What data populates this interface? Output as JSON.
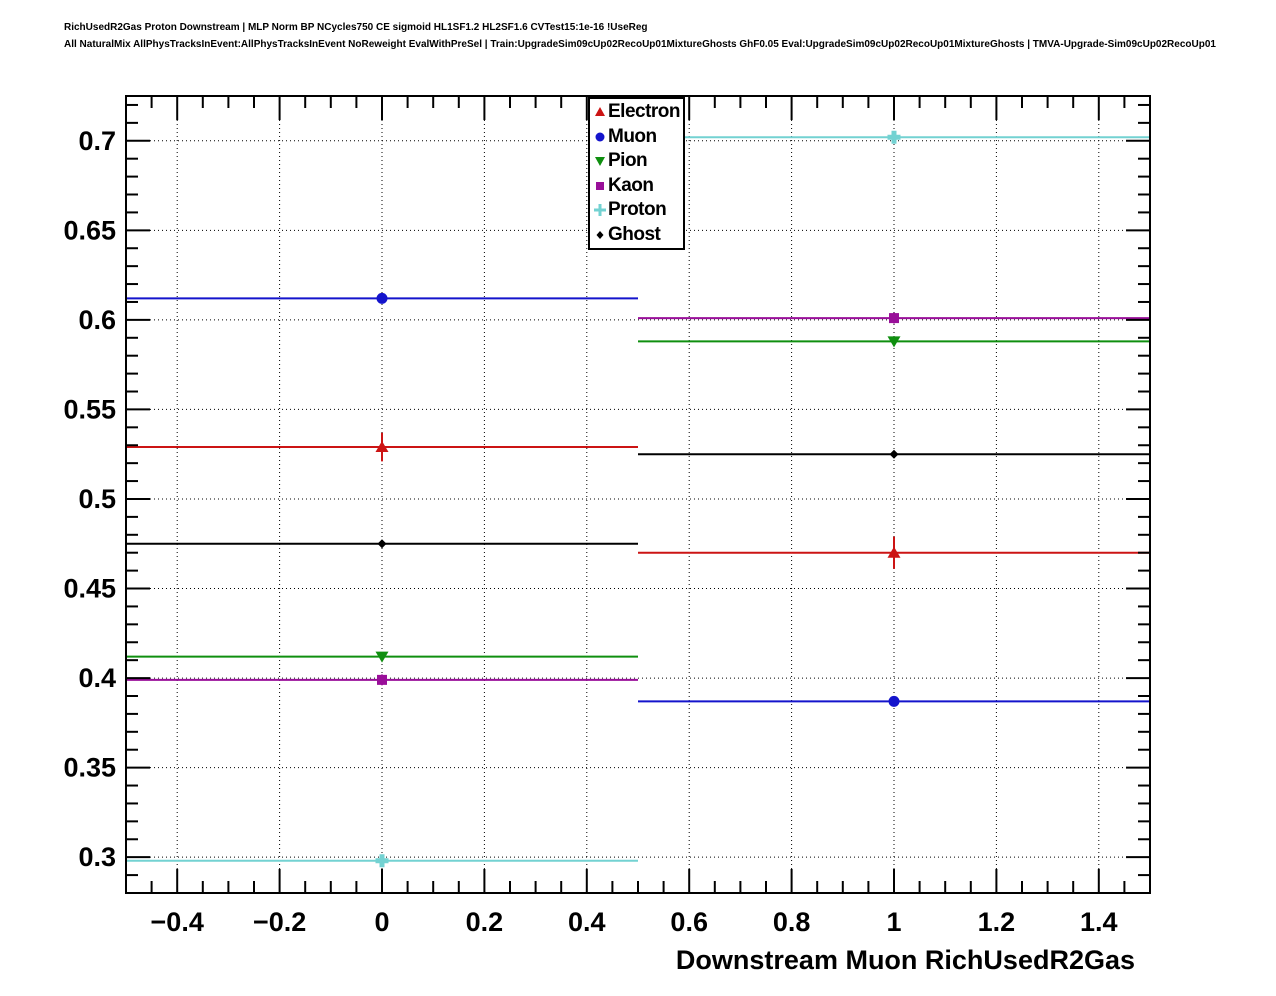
{
  "header": {
    "line1": "RichUsedR2Gas Proton Downstream | MLP Norm BP NCycles750 CE sigmoid HL1SF1.2 HL2SF1.6 CVTest15:1e-16 !UseReg",
    "line2": "All NaturalMix AllPhysTracksInEvent:AllPhysTracksInEvent NoReweight EvalWithPreSel | Train:UpgradeSim09cUp02RecoUp01MixtureGhosts GhF0.05 Eval:UpgradeSim09cUp02RecoUp01MixtureGhosts | TMVA-Upgrade-Sim09cUp02RecoUp01"
  },
  "chart_data": {
    "type": "scatter",
    "title": "",
    "xlabel": "Downstream Muon RichUsedR2Gas",
    "ylabel": "",
    "xlim": [
      -0.5,
      1.5
    ],
    "ylim": [
      0.28,
      0.725
    ],
    "grid": "dotted",
    "legend_position": "top-center",
    "x": [
      0,
      1
    ],
    "bin_half_width": 0.5,
    "xticks": [
      -0.4,
      -0.2,
      0,
      0.2,
      0.4,
      0.6,
      0.8,
      1.0,
      1.2,
      1.4
    ],
    "xtick_labels": [
      "−0.4",
      "−0.2",
      "0",
      "0.2",
      "0.4",
      "0.6",
      "0.8",
      "1",
      "1.2",
      "1.4"
    ],
    "yticks": [
      0.3,
      0.35,
      0.4,
      0.45,
      0.5,
      0.55,
      0.6,
      0.65,
      0.7
    ],
    "ytick_labels": [
      "0.3",
      "0.35",
      "0.4",
      "0.45",
      "0.5",
      "0.55",
      "0.6",
      "0.65",
      "0.7"
    ],
    "series": [
      {
        "name": "Electron",
        "color": "#cc1414",
        "marker": "triangle-up",
        "values": [
          0.529,
          0.47
        ],
        "yerr": [
          0.008,
          0.009
        ]
      },
      {
        "name": "Muon",
        "color": "#1414cc",
        "marker": "circle",
        "values": [
          0.612,
          0.387
        ],
        "yerr": [
          0.002,
          0.002
        ]
      },
      {
        "name": "Pion",
        "color": "#0f8f0f",
        "marker": "triangle-down",
        "values": [
          0.412,
          0.588
        ],
        "yerr": [
          0.002,
          0.002
        ]
      },
      {
        "name": "Kaon",
        "color": "#990f99",
        "marker": "square",
        "values": [
          0.399,
          0.601
        ],
        "yerr": [
          0.003,
          0.003
        ]
      },
      {
        "name": "Proton",
        "color": "#73d2d2",
        "marker": "cross",
        "values": [
          0.298,
          0.702
        ],
        "yerr": [
          0.002,
          0.002
        ]
      },
      {
        "name": "Ghost",
        "color": "#000000",
        "marker": "diamond-small",
        "values": [
          0.475,
          0.525
        ],
        "yerr": [
          0.002,
          0.002
        ]
      }
    ]
  }
}
